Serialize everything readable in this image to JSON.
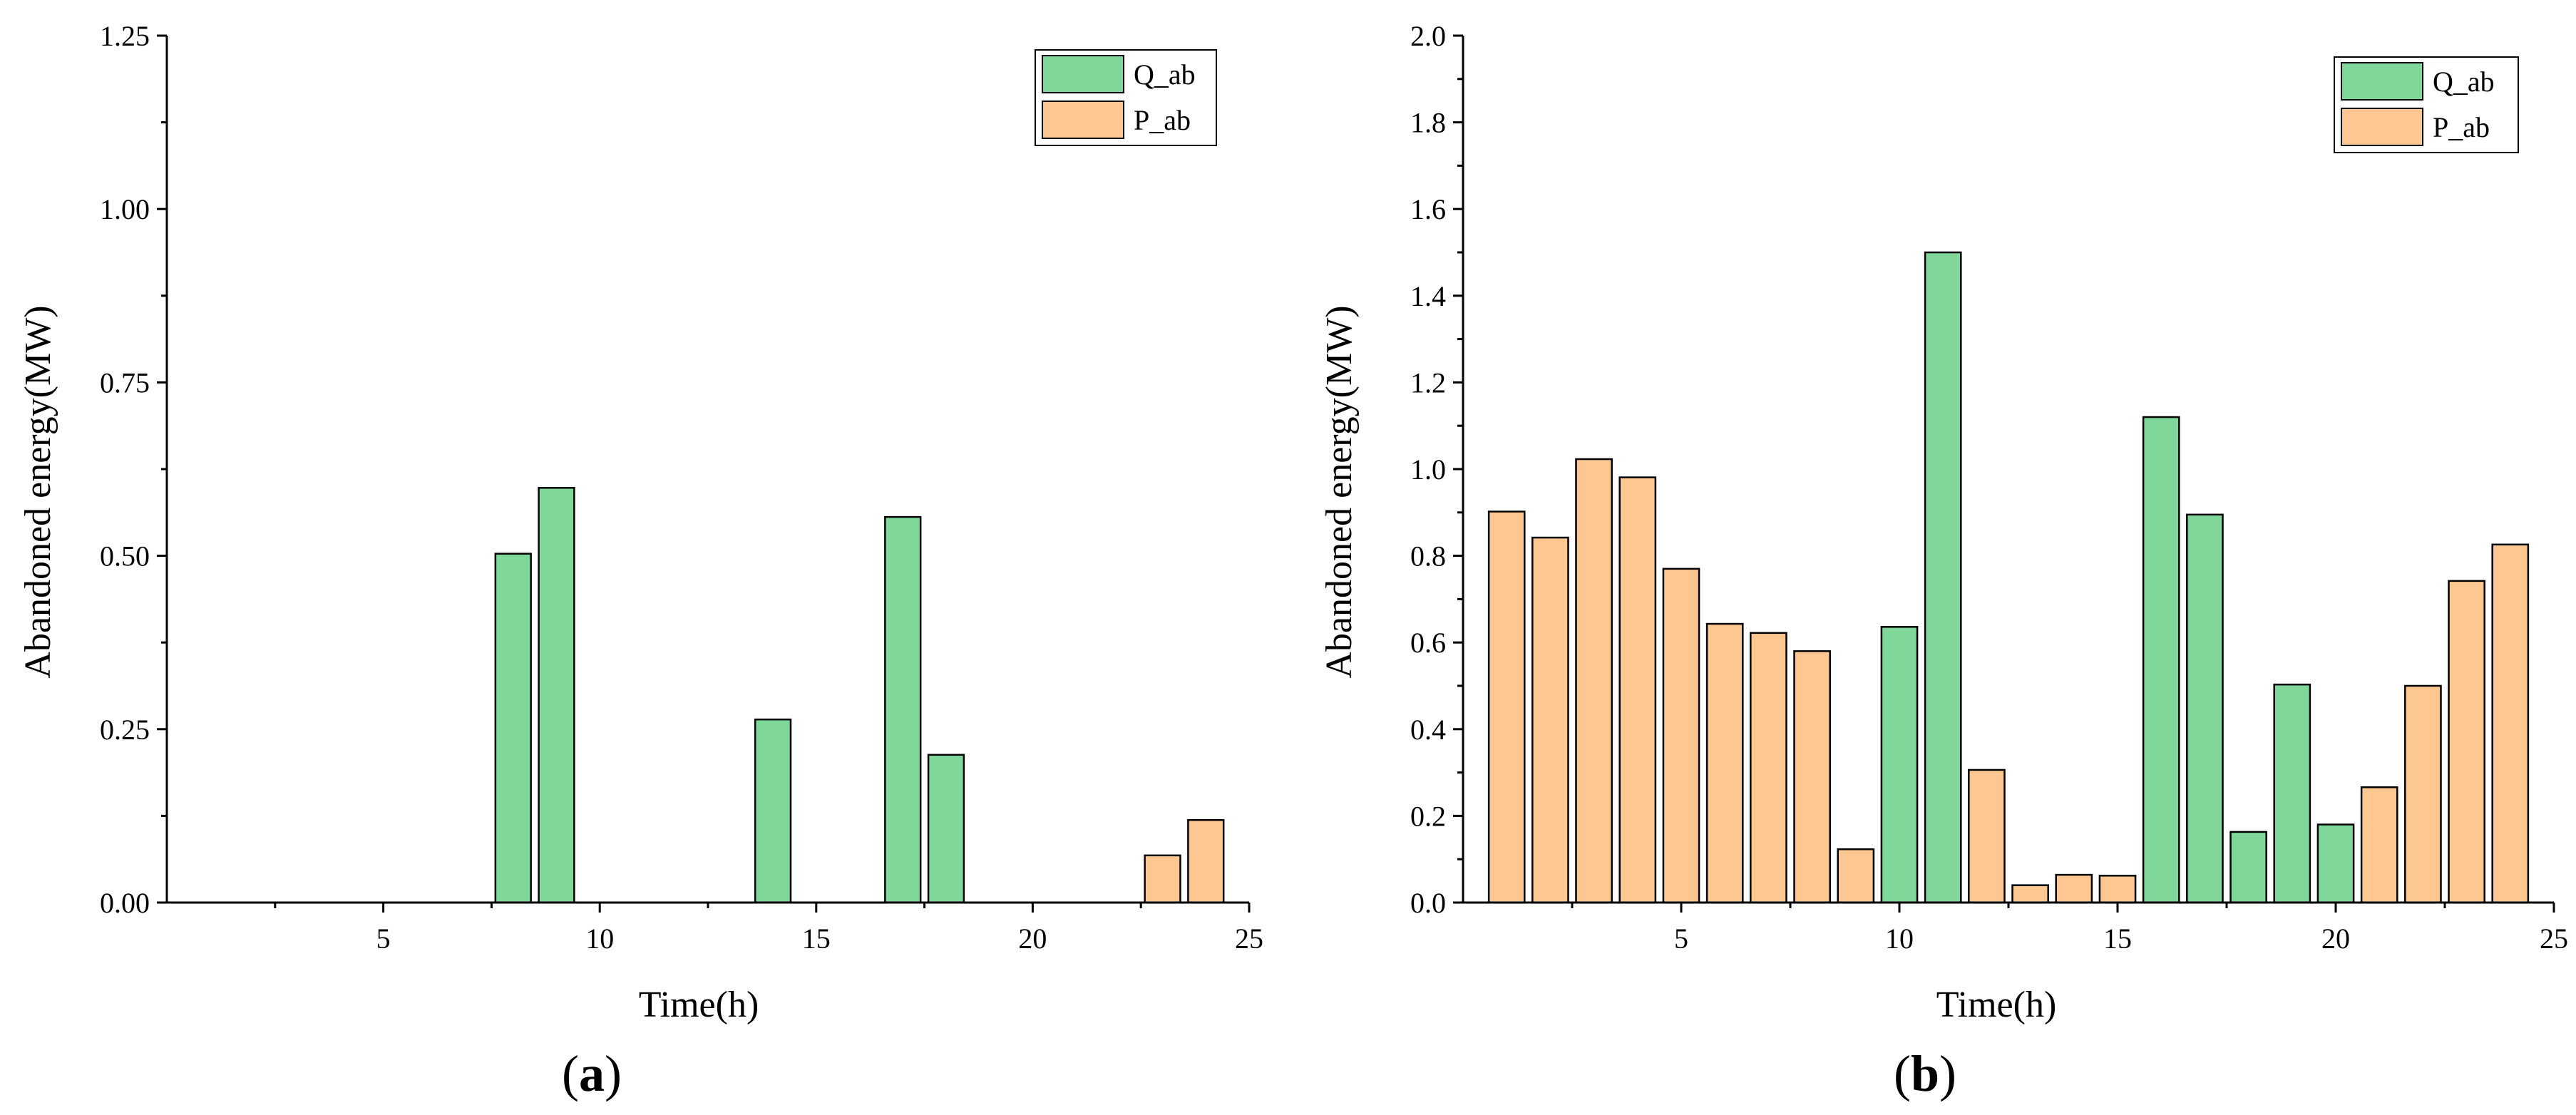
{
  "chart_data": [
    {
      "type": "bar",
      "panel_label": "a",
      "title": "",
      "xlabel": "Time(h)",
      "ylabel": "Abandoned energy(MW)",
      "xlim": [
        0,
        25
      ],
      "ylim": [
        0,
        1.25
      ],
      "xticks": [
        5,
        10,
        15,
        20,
        25
      ],
      "yticks": [
        0.0,
        0.25,
        0.5,
        0.75,
        1.0,
        1.25
      ],
      "ytick_labels": [
        "0.00",
        "0.25",
        "0.50",
        "0.75",
        "1.00",
        "1.25"
      ],
      "x": [
        1,
        2,
        3,
        4,
        5,
        6,
        7,
        8,
        9,
        10,
        11,
        12,
        13,
        14,
        15,
        16,
        17,
        18,
        19,
        20,
        21,
        22,
        23,
        24
      ],
      "legend_position": "top-right",
      "series": [
        {
          "name": "Q_ab",
          "color": "#7fd89a",
          "values": [
            0,
            0,
            0,
            0,
            0,
            0,
            0,
            0.503,
            0.598,
            0,
            0,
            0,
            0,
            0.264,
            0,
            0,
            0.556,
            0.213,
            0,
            0,
            0,
            0,
            0,
            0
          ]
        },
        {
          "name": "P_ab",
          "color": "#fdc792",
          "values": [
            0,
            0,
            0,
            0,
            0,
            0,
            0,
            0,
            0,
            0,
            0,
            0,
            0,
            0,
            0,
            0,
            0,
            0,
            0,
            0,
            0,
            0,
            0.068,
            0.119
          ]
        }
      ]
    },
    {
      "type": "bar",
      "panel_label": "b",
      "title": "",
      "xlabel": "Time(h)",
      "ylabel": "Abandoned energy(MW)",
      "xlim": [
        0,
        25
      ],
      "ylim": [
        0,
        2.0
      ],
      "xticks": [
        5,
        10,
        15,
        20,
        25
      ],
      "yticks": [
        0.0,
        0.2,
        0.4,
        0.6,
        0.8,
        1.0,
        1.2,
        1.4,
        1.6,
        1.8,
        2.0
      ],
      "ytick_labels": [
        "0.0",
        "0.2",
        "0.4",
        "0.6",
        "0.8",
        "1.0",
        "1.2",
        "1.4",
        "1.6",
        "1.8",
        "2.0"
      ],
      "x": [
        1,
        2,
        3,
        4,
        5,
        6,
        7,
        8,
        9,
        10,
        11,
        12,
        13,
        14,
        15,
        16,
        17,
        18,
        19,
        20,
        21,
        22,
        23,
        24
      ],
      "legend_position": "top-right",
      "series": [
        {
          "name": "Q_ab",
          "color": "#7fd89a",
          "values": [
            0,
            0,
            0,
            0,
            0,
            0,
            0,
            0,
            0,
            0.636,
            1.5,
            0,
            0,
            0,
            0,
            1.12,
            0.895,
            0.163,
            0.503,
            0.18,
            0,
            0,
            0,
            0
          ]
        },
        {
          "name": "P_ab",
          "color": "#fdc792",
          "values": [
            0.902,
            0.842,
            1.023,
            0.981,
            0.77,
            0.643,
            0.622,
            0.58,
            0.123,
            0,
            0,
            0.306,
            0.04,
            0.064,
            0.062,
            0,
            0,
            0,
            0,
            0,
            0.266,
            0.5,
            0.742,
            0.826
          ]
        }
      ]
    }
  ]
}
